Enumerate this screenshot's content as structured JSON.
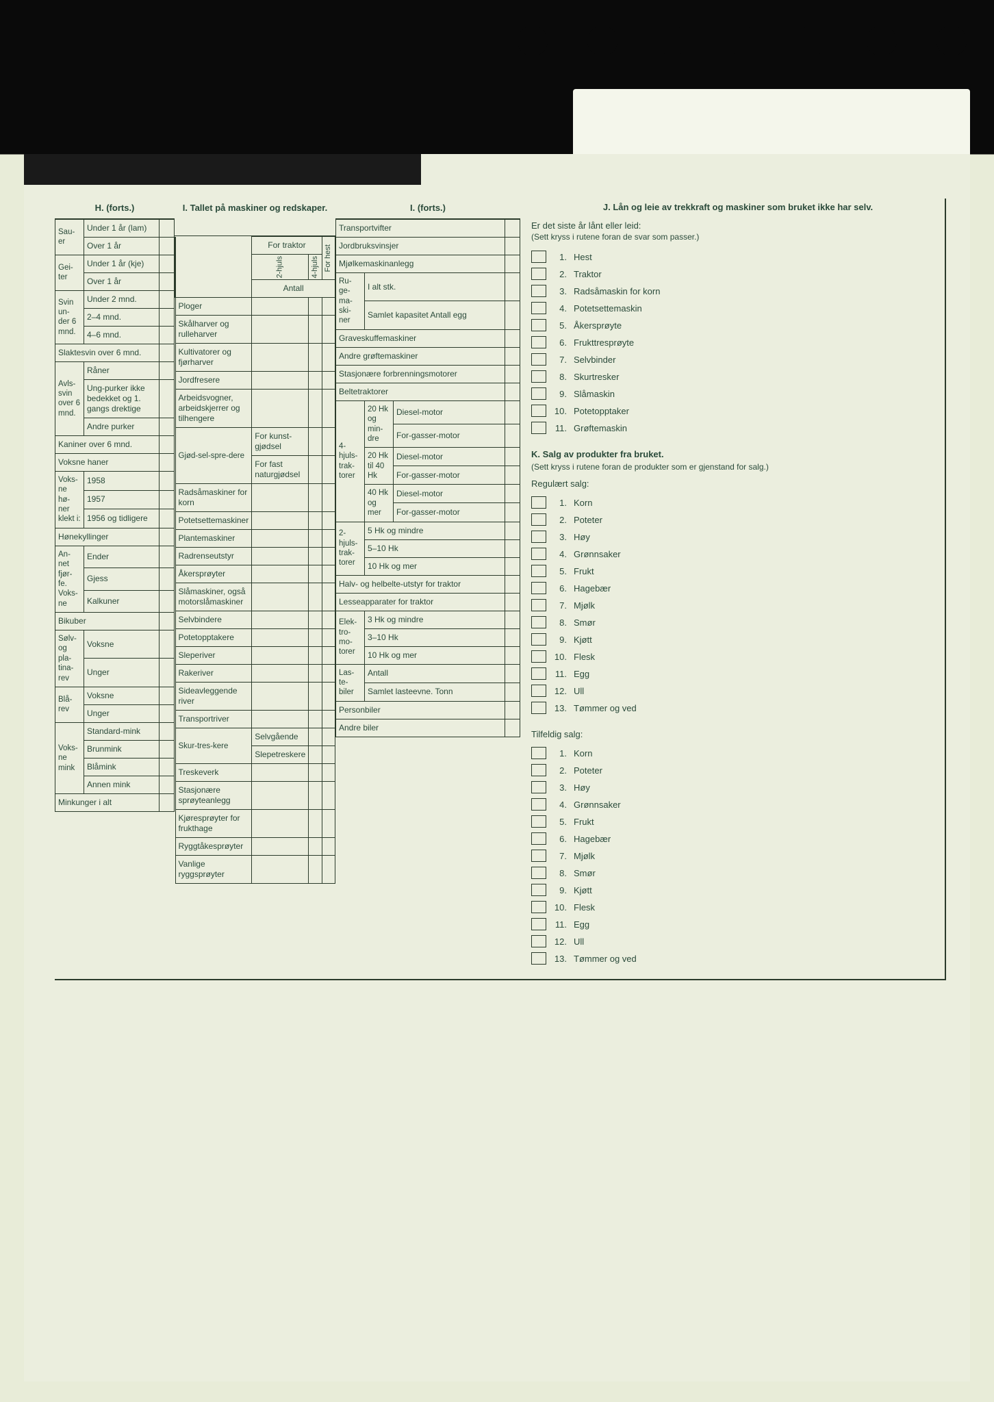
{
  "colors": {
    "paper": "#ebeede",
    "ink": "#2a4a3a",
    "border": "#2a3a2a",
    "dark_bg": "#0a0a0a"
  },
  "H": {
    "header": "H. (forts.)",
    "rows": [
      {
        "group": "Sau-er",
        "items": [
          "Under 1 år (lam)",
          "Over 1 år"
        ]
      },
      {
        "group": "Gei-ter",
        "items": [
          "Under 1 år (kje)",
          "Over 1 år"
        ]
      },
      {
        "group": "Svin un-der 6 mnd.",
        "items": [
          "Under 2 mnd.",
          "2–4 mnd.",
          "4–6 mnd."
        ]
      },
      {
        "group": "Slaktesvin over 6 mnd.",
        "items": []
      },
      {
        "group": "Avls-svin over 6 mnd.",
        "items": [
          "Råner",
          "Ung-purker ikke bedekket og 1. gangs drektige",
          "Andre purker"
        ]
      },
      {
        "group": "Kaniner over 6 mnd.",
        "items": []
      },
      {
        "group": "Voksne haner",
        "items": []
      },
      {
        "group": "Voks-ne hø-ner klekt i:",
        "items": [
          "1958",
          "1957",
          "1956 og tidligere"
        ]
      },
      {
        "group": "Hønekyllinger",
        "items": []
      },
      {
        "group": "An-net fjør-fe. Voks-ne",
        "items": [
          "Ender",
          "Gjess",
          "Kalkuner"
        ]
      },
      {
        "group": "Bikuber",
        "items": []
      },
      {
        "group": "Sølv- og pla-tina-rev",
        "items": [
          "Voksne",
          "Unger"
        ]
      },
      {
        "group": "Blå-rev",
        "items": [
          "Voksne",
          "Unger"
        ]
      },
      {
        "group": "Voks-ne mink",
        "items": [
          "Standard-mink",
          "Brunmink",
          "Blåmink",
          "Annen mink"
        ]
      },
      {
        "group": "Minkunger i alt",
        "items": []
      }
    ]
  },
  "I": {
    "header": "I. Tallet på maskiner og redskaper.",
    "traktor_cols": [
      "For hest",
      "2-hjuls",
      "4-hjuls"
    ],
    "traktor_header": "For traktor",
    "antall": "Antall",
    "rows": [
      "Ploger",
      "Skålharver og rulleharver",
      "Kultivatorer og fjørharver",
      "Jordfresere",
      "Arbeidsvogner, arbeidskjerrer og tilhengere",
      {
        "group": "Gjød-sel-spre-dere",
        "items": [
          "For kunst-gjødsel",
          "For fast naturgjødsel"
        ]
      },
      "Radsåmaskiner for korn",
      "Potetsettemaskiner",
      "Plantemaskiner",
      "Radrenseutstyr",
      "Åkersprøyter",
      "Slåmaskiner, også motorslåmaskiner",
      "Selvbindere",
      "Potetopptakere",
      "Sleperiver",
      "Rakeriver",
      "Sideavleggende river",
      "Transportriver",
      {
        "group": "Skur-tres-kere",
        "items": [
          "Selvgående",
          "Slepetreskere"
        ]
      },
      "Treskeverk",
      "Stasjonære sprøyteanlegg",
      "Kjøresprøyter for frukthage",
      "Ryggtåkesprøyter",
      "Vanlige ryggsprøyter"
    ]
  },
  "I2": {
    "header": "I. (forts.)",
    "rows_top": [
      "Transportvifter",
      "Jordbruksvinsjer",
      "Mjølkemaskinanlegg"
    ],
    "ruge": {
      "group": "Ru-ge-ma-ski-ner",
      "items": [
        "I alt stk.",
        "Samlet kapasitet Antall egg"
      ]
    },
    "rows_mid": [
      "Graveskuffemaskiner",
      "Andre grøftemaskiner",
      "Stasjonære forbrenningsmotorer",
      "Beltetraktorer"
    ],
    "hjul4": {
      "group": "4-hjuls-trak-torer",
      "sub": [
        {
          "g": "20 Hk og min-dre",
          "i": [
            "Diesel-motor",
            "For-gasser-motor"
          ]
        },
        {
          "g": "20 Hk til 40 Hk",
          "i": [
            "Diesel-motor",
            "For-gasser-motor"
          ]
        },
        {
          "g": "40 Hk og mer",
          "i": [
            "Diesel-motor",
            "For-gasser-motor"
          ]
        }
      ]
    },
    "hjul2": {
      "group": "2-hjuls-trak-torer",
      "items": [
        "5 Hk og mindre",
        "5–10 Hk",
        "10 Hk og mer"
      ]
    },
    "rows_bot": [
      "Halv- og helbelte-utstyr for traktor",
      "Lesseapparater for traktor"
    ],
    "elektro": {
      "group": "Elek-tro-mo-torer",
      "items": [
        "3 Hk og mindre",
        "3–10 Hk",
        "10 Hk og mer"
      ]
    },
    "laste": {
      "group": "Las-te-biler",
      "items": [
        "Antall",
        "Samlet lasteevne. Tonn"
      ]
    },
    "last": [
      "Personbiler",
      "Andre biler"
    ]
  },
  "J": {
    "title": "J. Lån og leie av trekkraft og maskiner som bruket ikke har selv.",
    "sub": "Er det siste år lånt eller leid:",
    "note": "(Sett kryss i rutene foran de svar som passer.)",
    "items": [
      "Hest",
      "Traktor",
      "Radsåmaskin for korn",
      "Potetsettemaskin",
      "Åkersprøyte",
      "Frukttresprøyte",
      "Selvbinder",
      "Skurtresker",
      "Slåmaskin",
      "Potetopptaker",
      "Grøftemaskin"
    ]
  },
  "K": {
    "title": "K. Salg av produkter fra bruket.",
    "note": "(Sett kryss i rutene foran de produkter som er gjenstand for salg.)",
    "reg_label": "Regulært salg:",
    "reg_items": [
      "Korn",
      "Poteter",
      "Høy",
      "Grønnsaker",
      "Frukt",
      "Hagebær",
      "Mjølk",
      "Smør",
      "Kjøtt",
      "Flesk",
      "Egg",
      "Ull",
      "Tømmer og ved"
    ],
    "tilf_label": "Tilfeldig salg:",
    "tilf_items": [
      "Korn",
      "Poteter",
      "Høy",
      "Grønnsaker",
      "Frukt",
      "Hagebær",
      "Mjølk",
      "Smør",
      "Kjøtt",
      "Flesk",
      "Egg",
      "Ull",
      "Tømmer og ved"
    ]
  }
}
